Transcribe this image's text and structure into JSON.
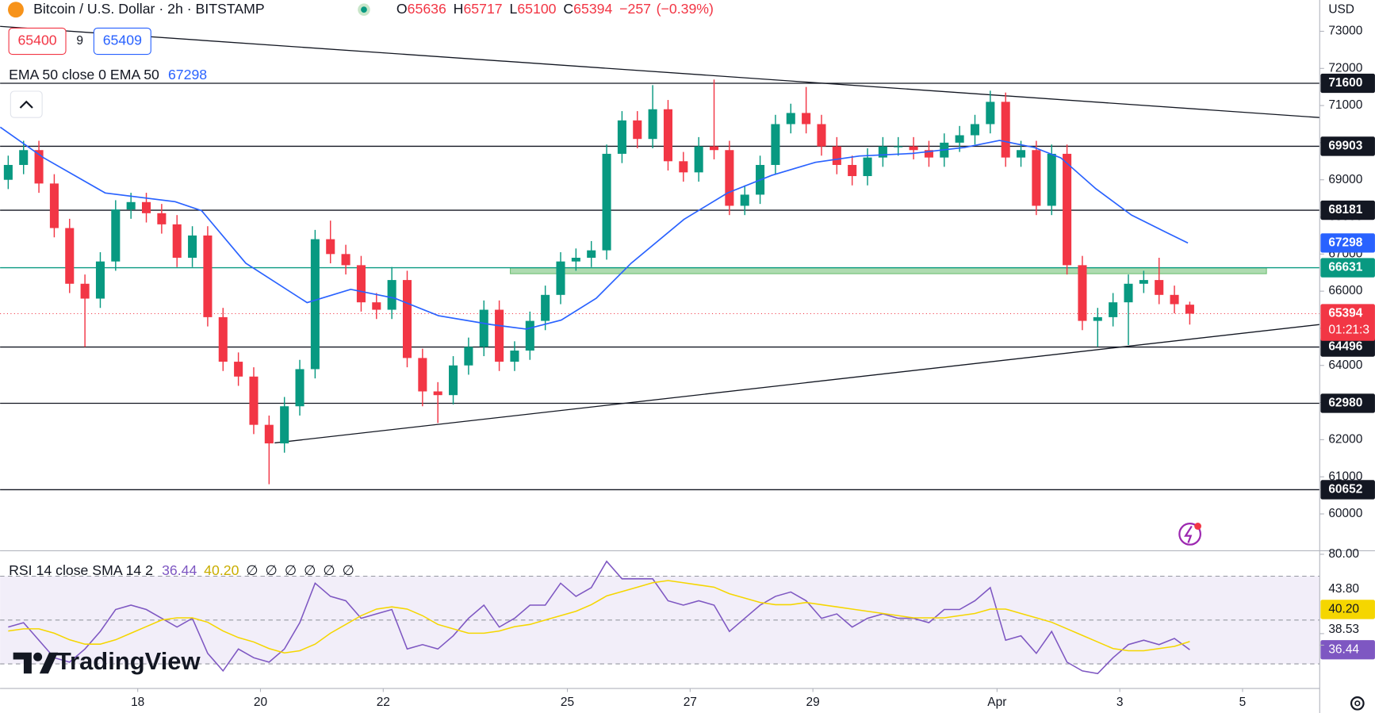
{
  "header": {
    "symbol": "Bitcoin / U.S. Dollar · 2h · BITSTAMP",
    "ohlc_prefixes": [
      "O",
      "H",
      "L",
      "C"
    ],
    "change": "−257",
    "change_pct": "(−0.39%)",
    "sell": "65400",
    "spread": "9",
    "buy": "65409",
    "currency": "USD",
    "countdown": "01:21:3",
    "logo": "TradingView"
  },
  "chart_data": [
    {
      "type": "candlestick",
      "x": [
        -2.11,
        -1.86,
        -1.61,
        -1.36,
        -1.11,
        -0.86,
        -0.61,
        -0.36,
        -0.11,
        0.14,
        0.39,
        0.64,
        0.89,
        1.14,
        1.39,
        1.64,
        1.89,
        2.14,
        2.39,
        2.64,
        2.89,
        3.14,
        3.39,
        3.64,
        3.89,
        4.14,
        4.39,
        4.64,
        4.89,
        5.14,
        5.39,
        5.64,
        5.89,
        6.14,
        6.39,
        6.64,
        6.89,
        7.14,
        7.39,
        7.64,
        7.89,
        8.14,
        8.39,
        8.64,
        8.89,
        9.14,
        9.39,
        9.64,
        9.89,
        10.14,
        10.39,
        10.64,
        10.89,
        11.14,
        11.39,
        11.64,
        11.89,
        12.14,
        12.39,
        12.64,
        12.89,
        13.14,
        13.39,
        13.64,
        13.89,
        14.14,
        14.39,
        14.64,
        14.89,
        15.14,
        15.39,
        15.64,
        15.89,
        16.14,
        16.39,
        16.64,
        16.89,
        17.14
      ],
      "open": [
        69000,
        69400,
        69800,
        68900,
        67700,
        66200,
        65800,
        66800,
        68200,
        68400,
        68100,
        67800,
        66900,
        67500,
        65300,
        64100,
        63700,
        62400,
        61900,
        62900,
        63900,
        67400,
        67000,
        66700,
        65700,
        65500,
        66300,
        64200,
        63300,
        63200,
        64000,
        64500,
        65500,
        64100,
        64400,
        65200,
        65900,
        66800,
        66900,
        67100,
        69700,
        70600,
        70100,
        70900,
        69500,
        69200,
        69900,
        69800,
        68300,
        68600,
        69400,
        70500,
        70800,
        70500,
        69900,
        69400,
        69100,
        69600,
        69900,
        69900,
        69800,
        69600,
        70000,
        70200,
        70500,
        71100,
        69600,
        69800,
        68300,
        69700,
        66700,
        65200,
        65300,
        65700,
        66200,
        66300,
        65900,
        65636
      ],
      "high": [
        69650,
        70050,
        70050,
        69150,
        67950,
        66450,
        67050,
        68450,
        68650,
        68650,
        68350,
        68050,
        67750,
        67750,
        65550,
        64350,
        63950,
        62650,
        63150,
        64150,
        67650,
        67900,
        67250,
        66950,
        65950,
        66650,
        66550,
        64450,
        63550,
        64250,
        64750,
        65750,
        65750,
        64650,
        65450,
        66150,
        67050,
        67150,
        67350,
        69950,
        70850,
        70850,
        71550,
        71150,
        69750,
        70150,
        71700,
        70050,
        68850,
        69650,
        70750,
        71050,
        71500,
        70750,
        70150,
        69650,
        69850,
        70150,
        70150,
        70150,
        70050,
        70250,
        70450,
        70750,
        71400,
        71350,
        70050,
        70050,
        69950,
        69950,
        66950,
        65550,
        65950,
        66450,
        66550,
        66900,
        66150,
        65717
      ],
      "low": [
        68750,
        69150,
        68650,
        67450,
        65950,
        64500,
        65550,
        66550,
        67950,
        67850,
        67550,
        66650,
        66650,
        65050,
        63850,
        63450,
        62150,
        60800,
        61650,
        62650,
        63650,
        66750,
        66450,
        65450,
        65250,
        65250,
        63950,
        62900,
        62450,
        62950,
        63750,
        64250,
        63850,
        63850,
        64150,
        64950,
        65650,
        66550,
        66650,
        66850,
        69450,
        69850,
        69850,
        69250,
        68950,
        68950,
        69550,
        68050,
        68050,
        68350,
        69150,
        70250,
        70250,
        69650,
        69150,
        68850,
        68850,
        69350,
        69650,
        69550,
        69350,
        69350,
        69750,
        69950,
        70250,
        69350,
        69350,
        68050,
        68050,
        66450,
        64950,
        64500,
        65050,
        64550,
        65950,
        65650,
        65400,
        65100
      ],
      "close": [
        69400,
        69800,
        68900,
        67700,
        66200,
        65800,
        66800,
        68200,
        68400,
        68100,
        67800,
        66900,
        67500,
        65300,
        64100,
        63700,
        62400,
        61900,
        62900,
        63900,
        67400,
        67000,
        66700,
        65700,
        65500,
        66300,
        64200,
        63300,
        63200,
        64000,
        64500,
        65500,
        64100,
        64400,
        65200,
        65900,
        66800,
        66900,
        67100,
        69700,
        70600,
        70100,
        70900,
        69500,
        69200,
        69900,
        69800,
        68300,
        68600,
        69400,
        70500,
        70800,
        70500,
        69900,
        69400,
        69100,
        69600,
        69900,
        69900,
        69800,
        69600,
        70000,
        70200,
        70500,
        71100,
        69600,
        69800,
        68300,
        69700,
        66700,
        65200,
        65300,
        65700,
        66200,
        66300,
        65900,
        65650,
        65394
      ],
      "up_color": "#089981",
      "down_color": "#f23645",
      "xlim": [
        -2.243,
        19.257
      ],
      "xticks": [
        {
          "value": 0,
          "label": "18"
        },
        {
          "value": 2,
          "label": "20"
        },
        {
          "value": 4,
          "label": "22"
        },
        {
          "value": 7,
          "label": "25"
        },
        {
          "value": 9,
          "label": "27"
        },
        {
          "value": 11,
          "label": "29"
        },
        {
          "value": 14,
          "label": "Apr"
        },
        {
          "value": 16,
          "label": "3"
        },
        {
          "value": 18,
          "label": "5"
        }
      ],
      "ylim": [
        59008,
        73843
      ],
      "yticks": [
        60000,
        61000,
        62000,
        63000,
        64000,
        65000,
        66000,
        67000,
        68000,
        69000,
        70000,
        71000,
        72000,
        73000
      ],
      "ema": {
        "name": "EMA 50 close 0 EMA 50",
        "color": "#2962ff",
        "x": [
          -2.24,
          -1.53,
          -0.53,
          0.61,
          1.04,
          1.76,
          2.76,
          3.47,
          4.19,
          4.9,
          5.76,
          6.33,
          6.9,
          7.47,
          8.04,
          8.9,
          9.61,
          10.33,
          11.04,
          11.76,
          12.61,
          13.47,
          14.04,
          14.61,
          15.04,
          15.61,
          16.19,
          16.76,
          17.11
        ],
        "values": [
          70417,
          69590,
          68645,
          68410,
          68170,
          66755,
          65690,
          66050,
          65810,
          65340,
          65100,
          64980,
          65220,
          65810,
          66755,
          67935,
          68645,
          69120,
          69470,
          69640,
          69710,
          69870,
          70060,
          69870,
          69590,
          68760,
          68050,
          67580,
          67298
        ]
      },
      "levels": {
        "values": [
          71600,
          69903,
          68181,
          66631,
          64496,
          62980,
          60652
        ],
        "colors": [
          "#131722",
          "#131722",
          "#131722",
          "#089981",
          "#131722",
          "#131722",
          "#131722"
        ]
      },
      "zone": {
        "x": [
          6.07,
          18.39
        ],
        "y": [
          66470,
          66630
        ],
        "color": "#4caf50"
      },
      "trendlines": [
        {
          "x": [
            -2.243,
            19.257
          ],
          "y": [
            73133,
            70677
          ]
        },
        {
          "x": [
            2.23,
            19.257
          ],
          "y": [
            61913,
            65102
          ]
        }
      ]
    },
    {
      "type": "line",
      "title": "RSI 14 close SMA 14 2",
      "ylim": [
        18.8,
        81.6
      ],
      "yticks": [
        {
          "value": 80,
          "label": "80.00"
        },
        {
          "value": 43.8,
          "label": "43.80"
        },
        {
          "value": 38.53,
          "label": "38.53"
        }
      ],
      "levels": [
        70,
        50,
        30
      ],
      "band_color": "#7e57c2",
      "na_values": [
        "∅",
        "∅",
        "∅",
        "∅",
        "∅",
        "∅"
      ],
      "series": [
        {
          "color": "#7e57c2",
          "values": [
            46.8,
            48.8,
            40.8,
            32.8,
            30.8,
            36.8,
            44.8,
            54.8,
            56.8,
            54.8,
            50.8,
            46.8,
            50.8,
            34.8,
            26.8,
            36.8,
            32.8,
            30.8,
            36.8,
            48.8,
            66.8,
            60.8,
            58.8,
            50.8,
            52.8,
            54.8,
            36.8,
            38.8,
            36.8,
            42.8,
            50.8,
            56.8,
            46.8,
            50.8,
            56.8,
            56.8,
            66.8,
            60.8,
            64.8,
            76.8,
            68.8,
            68.8,
            68.8,
            58.8,
            56.8,
            58.8,
            56.8,
            44.8,
            50.8,
            56.8,
            60.8,
            62.8,
            58.8,
            50.8,
            52.8,
            46.8,
            50.8,
            52.8,
            50.8,
            50.8,
            48.8,
            54.8,
            54.8,
            58.8,
            64.8,
            40.8,
            42.8,
            34.8,
            44.8,
            30.8,
            26.8,
            25.6,
            32.8,
            38.8,
            40.8,
            38.8,
            41.6,
            36.44
          ]
        },
        {
          "color": "#f5d600",
          "last_label": "40.20",
          "values": [
            45,
            46,
            46,
            44,
            41,
            39,
            39,
            41,
            44,
            47,
            50,
            51,
            51,
            49,
            45,
            42,
            40,
            37,
            35,
            36,
            39,
            44,
            48,
            52,
            55,
            56,
            55,
            52,
            48,
            46,
            44,
            44,
            45,
            47,
            48,
            50,
            52,
            54,
            57,
            61,
            63,
            65,
            67,
            68,
            67,
            66,
            65,
            62,
            60,
            58,
            57,
            57,
            58,
            57,
            56,
            55,
            54,
            53,
            52,
            51,
            51,
            51,
            52,
            53,
            55,
            55,
            53,
            51,
            49,
            46,
            43,
            40,
            37,
            36,
            36,
            37,
            38,
            40.2
          ]
        }
      ]
    }
  ]
}
